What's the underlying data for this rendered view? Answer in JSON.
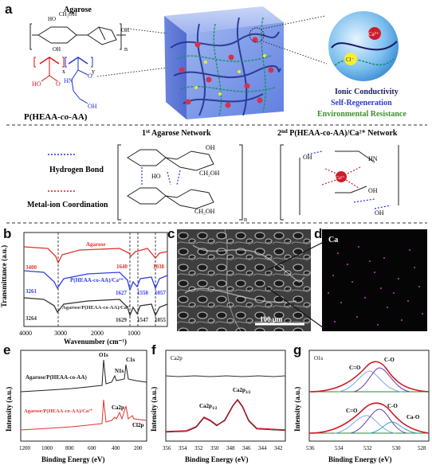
{
  "panel_labels": {
    "a": "a",
    "b": "b",
    "c": "c",
    "d": "d",
    "e": "e",
    "f": "f",
    "g": "g"
  },
  "panel_a": {
    "agarose_label": "Agarose",
    "copolymer_label": "P(HEAA-co-AA)",
    "copolymer_prefix": "P(HEAA-",
    "copolymer_italic": "co",
    "copolymer_suffix": "-AA)",
    "n_label": "n",
    "x_label": "x",
    "y_label": "y",
    "ion_ca": "Ca²⁺",
    "ion_cl": "Cl⁻",
    "prop_ionic": "Ionic Conductivity",
    "prop_regen": "Self-Regeneration",
    "prop_env": "Environmental Resistance",
    "colors": {
      "ionic": "#1a1a60",
      "regen": "#2b3fc8",
      "env": "#3f8f2e"
    }
  },
  "networks": {
    "first_title_prefix": "1",
    "first_title_sup": "st",
    "first_title_rest": " Agarose Network",
    "second_title_prefix": "2",
    "second_title_sup": "nd",
    "second_title_rest": " P(HEAA-co-AA)/Ca²⁺ Network",
    "legend_hbond": "Hydrogen Bond",
    "legend_metal": "Metal-ion  Coordination",
    "ca_label": "Ca²⁺"
  },
  "panel_b": {
    "xlabel": "Wavenumber (cm⁻¹)",
    "ylabel": "Transmittance (a.u.)",
    "xticks": [
      "4000",
      "3000",
      "2000",
      "1000"
    ],
    "series": [
      {
        "name": "Agarose",
        "color": "#e0332f",
        "peaks": [
          "3400",
          "1640",
          "1038"
        ]
      },
      {
        "name": "P(HEAA-co-AA)/Ca²⁺",
        "color": "#2f3ee6",
        "peaks": [
          "3261",
          "1627",
          "1550",
          "1057"
        ]
      },
      {
        "name": "Agarose/P(HEAA-co-AA)/Ca²⁺",
        "color": "#333333",
        "peaks": [
          "3264",
          "1629",
          "1547",
          "1055"
        ]
      }
    ]
  },
  "panel_c": {
    "scale_bar": "100 μm"
  },
  "panel_d": {
    "element": "Ca"
  },
  "panel_e": {
    "xlabel": "Binding Energy (eV)",
    "ylabel": "Intensity (a.u.)",
    "xticks": [
      "1200",
      "1000",
      "800",
      "600",
      "400",
      "200"
    ],
    "series": [
      {
        "name": "Agarose/P(HEAA-co-AA)",
        "color": "#222222"
      },
      {
        "name": "Agarose/P(HEAA-co-AA)/Ca²⁺",
        "color": "#e0332f"
      }
    ],
    "peaks": [
      "O1s",
      "N1s",
      "C1s",
      "Ca2p",
      "Cl2p"
    ]
  },
  "panel_f": {
    "title": "Ca2p",
    "xlabel": "Binding Energy (eV)",
    "ylabel": "Intensity (a.u.)",
    "xticks": [
      "356",
      "354",
      "352",
      "350",
      "348",
      "346",
      "344",
      "342"
    ],
    "peak1": "Ca2p",
    "peak1_sub": "1/2",
    "peak2": "Ca2p",
    "peak2_sub": "3/2"
  },
  "panel_g": {
    "title": "O1s",
    "xlabel": "Binding Energy (eV)",
    "ylabel": "Intensity (a.u.)",
    "xticks": [
      "536",
      "534",
      "532",
      "530",
      "528"
    ],
    "top_labels": [
      "C=O",
      "C-O"
    ],
    "bottom_labels": [
      "C=O",
      "C-O",
      "Ca-O"
    ]
  }
}
